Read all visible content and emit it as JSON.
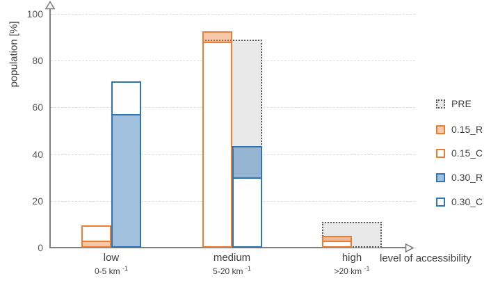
{
  "chart_data": {
    "type": "bar",
    "title": "",
    "categories": [
      "low",
      "medium",
      "high"
    ],
    "category_sublabels": [
      "0-5 km⁻¹",
      "5-20 km⁻¹",
      ">20 km⁻¹"
    ],
    "xlabel": "level of accessibility",
    "ylabel": "population [%]",
    "ylim": [
      0,
      100
    ],
    "yticks": [
      0,
      20,
      40,
      60,
      80,
      100
    ],
    "grid": "horizontal-dashed",
    "legend_position": "right",
    "bar_style": "overlaid pairs: filled (_R) and outlined (_C) bars share a slot; PRE spans the whole group width behind them",
    "series": [
      {
        "name": "PRE",
        "style": "pre",
        "values": [
          0,
          89,
          11
        ]
      },
      {
        "name": "0.15_R",
        "style": "r-orange",
        "values": [
          3,
          92.5,
          5
        ]
      },
      {
        "name": "0.15_C",
        "style": "c-orange",
        "values": [
          9.5,
          88,
          3
        ]
      },
      {
        "name": "0.30_R",
        "style": "r-blue",
        "values": [
          57,
          43.5,
          0
        ]
      },
      {
        "name": "0.30_C",
        "style": "c-blue",
        "values": [
          71,
          30,
          0
        ]
      }
    ]
  },
  "x_axis": {
    "label": "level of accessibility",
    "categories": [
      {
        "name": "low",
        "sub_base": "0-5 km",
        "sub_sup": "-1"
      },
      {
        "name": "medium",
        "sub_base": "5-20 km",
        "sub_sup": "-1"
      },
      {
        "name": "high",
        "sub_base": ">20 km",
        "sub_sup": "-1"
      }
    ]
  },
  "legend": {
    "items": [
      {
        "label": "PRE",
        "style": "pre"
      },
      {
        "label": "0.15_R",
        "style": "r-orange"
      },
      {
        "label": "0.15_C",
        "style": "c-orange"
      },
      {
        "label": "0.30_R",
        "style": "r-blue"
      },
      {
        "label": "0.30_C",
        "style": "c-blue"
      }
    ]
  },
  "colors": {
    "orange_stroke": "#ED7D31",
    "orange_fill": "rgba(237,125,49,0.42)",
    "blue_stroke": "#2E75B6",
    "blue_fill": "rgba(46,117,182,0.45)",
    "pre_border": "#595959",
    "pre_fill": "#E9E9E9",
    "outline_fill": "#FEFEFE",
    "axis": "#7F7F7F",
    "grid": "#DCDCDC",
    "text": "#3F3F3F",
    "tick_text": "#595959"
  }
}
